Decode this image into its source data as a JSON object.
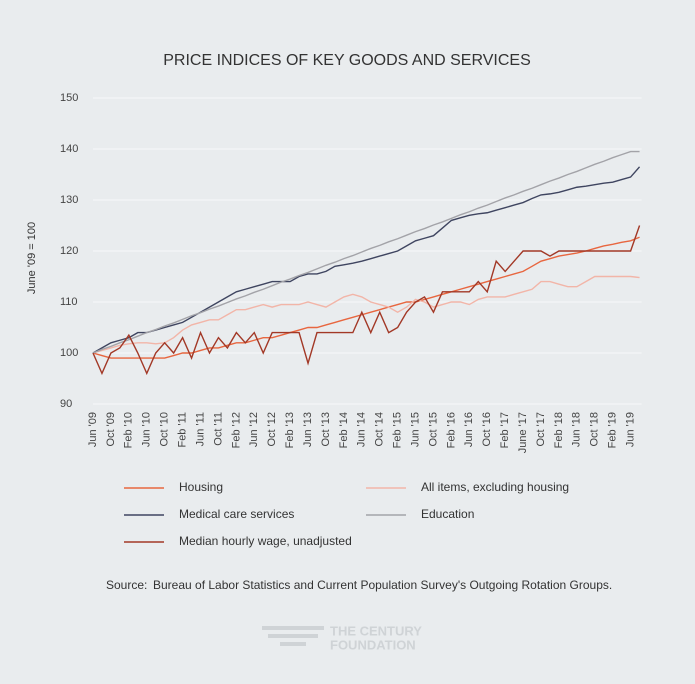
{
  "chart_data": {
    "type": "line",
    "title": "PRICE INDICES OF KEY GOODS AND SERVICES",
    "y_label": "June '09 = 100",
    "source_label": "Source:",
    "source": "Bureau of Labor Statistics and Current Population Survey's Outgoing Rotation Groups.",
    "logo": [
      "THE CENTURY",
      "FOUNDATION"
    ],
    "categories": [
      "Jun '09",
      null,
      "Oct '09",
      null,
      "Feb '10",
      null,
      "Jun '10",
      null,
      "Oct '10",
      null,
      "Feb '11",
      null,
      "Jun '11",
      null,
      "Oct '11",
      null,
      "Feb '12",
      null,
      "Jun '12",
      null,
      "Oct '12",
      null,
      "Feb '13",
      null,
      "Jun '13",
      null,
      "Oct '13",
      null,
      "Feb '14",
      null,
      "Jun '14",
      null,
      "Oct '14",
      null,
      "Feb '15",
      null,
      "Jun '15",
      null,
      "Oct '15",
      null,
      "Feb '16",
      null,
      "Jun '16",
      null,
      "Oct '16",
      null,
      "Feb '17",
      null,
      "June '17",
      null,
      "Oct '17",
      null,
      "Feb '18",
      null,
      "Jun '18",
      null,
      "Oct '18",
      null,
      "Feb '19",
      null,
      "Jun '19",
      null
    ],
    "ylim": [
      90,
      150
    ],
    "yticks": [
      90,
      100,
      110,
      120,
      130,
      140,
      150
    ],
    "grid": true,
    "series": [
      {
        "name": "Housing",
        "color": "#e8663f",
        "values": [
          100,
          99.5,
          99,
          99,
          99,
          99,
          99,
          99,
          99,
          99.5,
          100,
          100,
          100.5,
          101,
          101,
          101.5,
          102,
          102,
          102.5,
          103,
          103,
          103.5,
          104,
          104.5,
          105,
          105,
          105.5,
          106,
          106.5,
          107,
          107.5,
          108,
          108.5,
          109,
          109.5,
          110,
          110,
          110.5,
          111,
          111.5,
          112,
          112.5,
          113,
          113.5,
          114,
          114.5,
          115,
          115.5,
          116,
          117,
          118,
          118.5,
          119,
          119.3,
          119.6,
          120,
          120.5,
          121,
          121.3,
          121.7,
          122,
          122.7
        ]
      },
      {
        "name": "All items, excluding housing",
        "color": "#f2b5a8",
        "values": [
          100,
          100.5,
          101,
          101.5,
          101.8,
          102,
          102,
          101.8,
          102,
          103,
          104.5,
          105.5,
          106,
          106.5,
          106.5,
          107.5,
          108.5,
          108.5,
          109,
          109.5,
          109,
          109.5,
          109.5,
          109.5,
          110,
          109.5,
          109,
          110,
          111,
          111.5,
          111,
          110,
          109.5,
          109,
          108,
          109,
          110.5,
          110,
          109,
          109.5,
          110,
          110,
          109.5,
          110.5,
          111,
          111,
          111,
          111.5,
          112,
          112.5,
          114,
          114,
          113.5,
          113,
          113,
          114,
          115,
          115,
          115,
          115,
          115,
          114.8
        ]
      },
      {
        "name": "Medical care services",
        "color": "#3f4560",
        "values": [
          100,
          101,
          102,
          102.5,
          103,
          104,
          104,
          104.5,
          105,
          105.5,
          106,
          107,
          108,
          109,
          110,
          111,
          112,
          112.5,
          113,
          113.5,
          114,
          114,
          114,
          115,
          115.5,
          115.5,
          116,
          117,
          117.3,
          117.6,
          118,
          118.5,
          119,
          119.5,
          120,
          121,
          122,
          122.5,
          123,
          124.5,
          126,
          126.5,
          127,
          127.3,
          127.5,
          128,
          128.5,
          129,
          129.5,
          130.3,
          131,
          131.2,
          131.5,
          132,
          132.5,
          132.7,
          133,
          133.3,
          133.5,
          134,
          134.5,
          136.5
        ]
      },
      {
        "name": "Education",
        "color": "#a3a3a8",
        "values": [
          100,
          100.7,
          101.3,
          102,
          102.6,
          103.3,
          104,
          104.6,
          105.3,
          105.9,
          106.6,
          107.3,
          107.9,
          108.6,
          109.2,
          109.9,
          110.6,
          111.2,
          111.9,
          112.5,
          113.2,
          113.9,
          114.5,
          115.2,
          115.8,
          116.5,
          117.2,
          117.8,
          118.5,
          119.1,
          119.8,
          120.5,
          121.1,
          121.8,
          122.4,
          123.1,
          123.8,
          124.4,
          125.1,
          125.7,
          126.4,
          127.1,
          127.7,
          128.4,
          129,
          129.7,
          130.4,
          131,
          131.7,
          132.3,
          133,
          133.7,
          134.3,
          135,
          135.6,
          136.3,
          137,
          137.6,
          138.3,
          138.9,
          139.5,
          139.5
        ]
      },
      {
        "name": "Median hourly wage, unadjusted",
        "color": "#a23826",
        "values": [
          100,
          96,
          100,
          101,
          103.5,
          100,
          96,
          100,
          102,
          100,
          103,
          99,
          104,
          100,
          103,
          101,
          104,
          102,
          104,
          100,
          104,
          104,
          104,
          104,
          98,
          104,
          104,
          104,
          104,
          104,
          108,
          104,
          108,
          104,
          105,
          108,
          110,
          111,
          108,
          112,
          112,
          112,
          112,
          114,
          112,
          118,
          116,
          118,
          120,
          120,
          120,
          119,
          120,
          120,
          120,
          120,
          120,
          120,
          120,
          120,
          120,
          125
        ]
      }
    ]
  }
}
